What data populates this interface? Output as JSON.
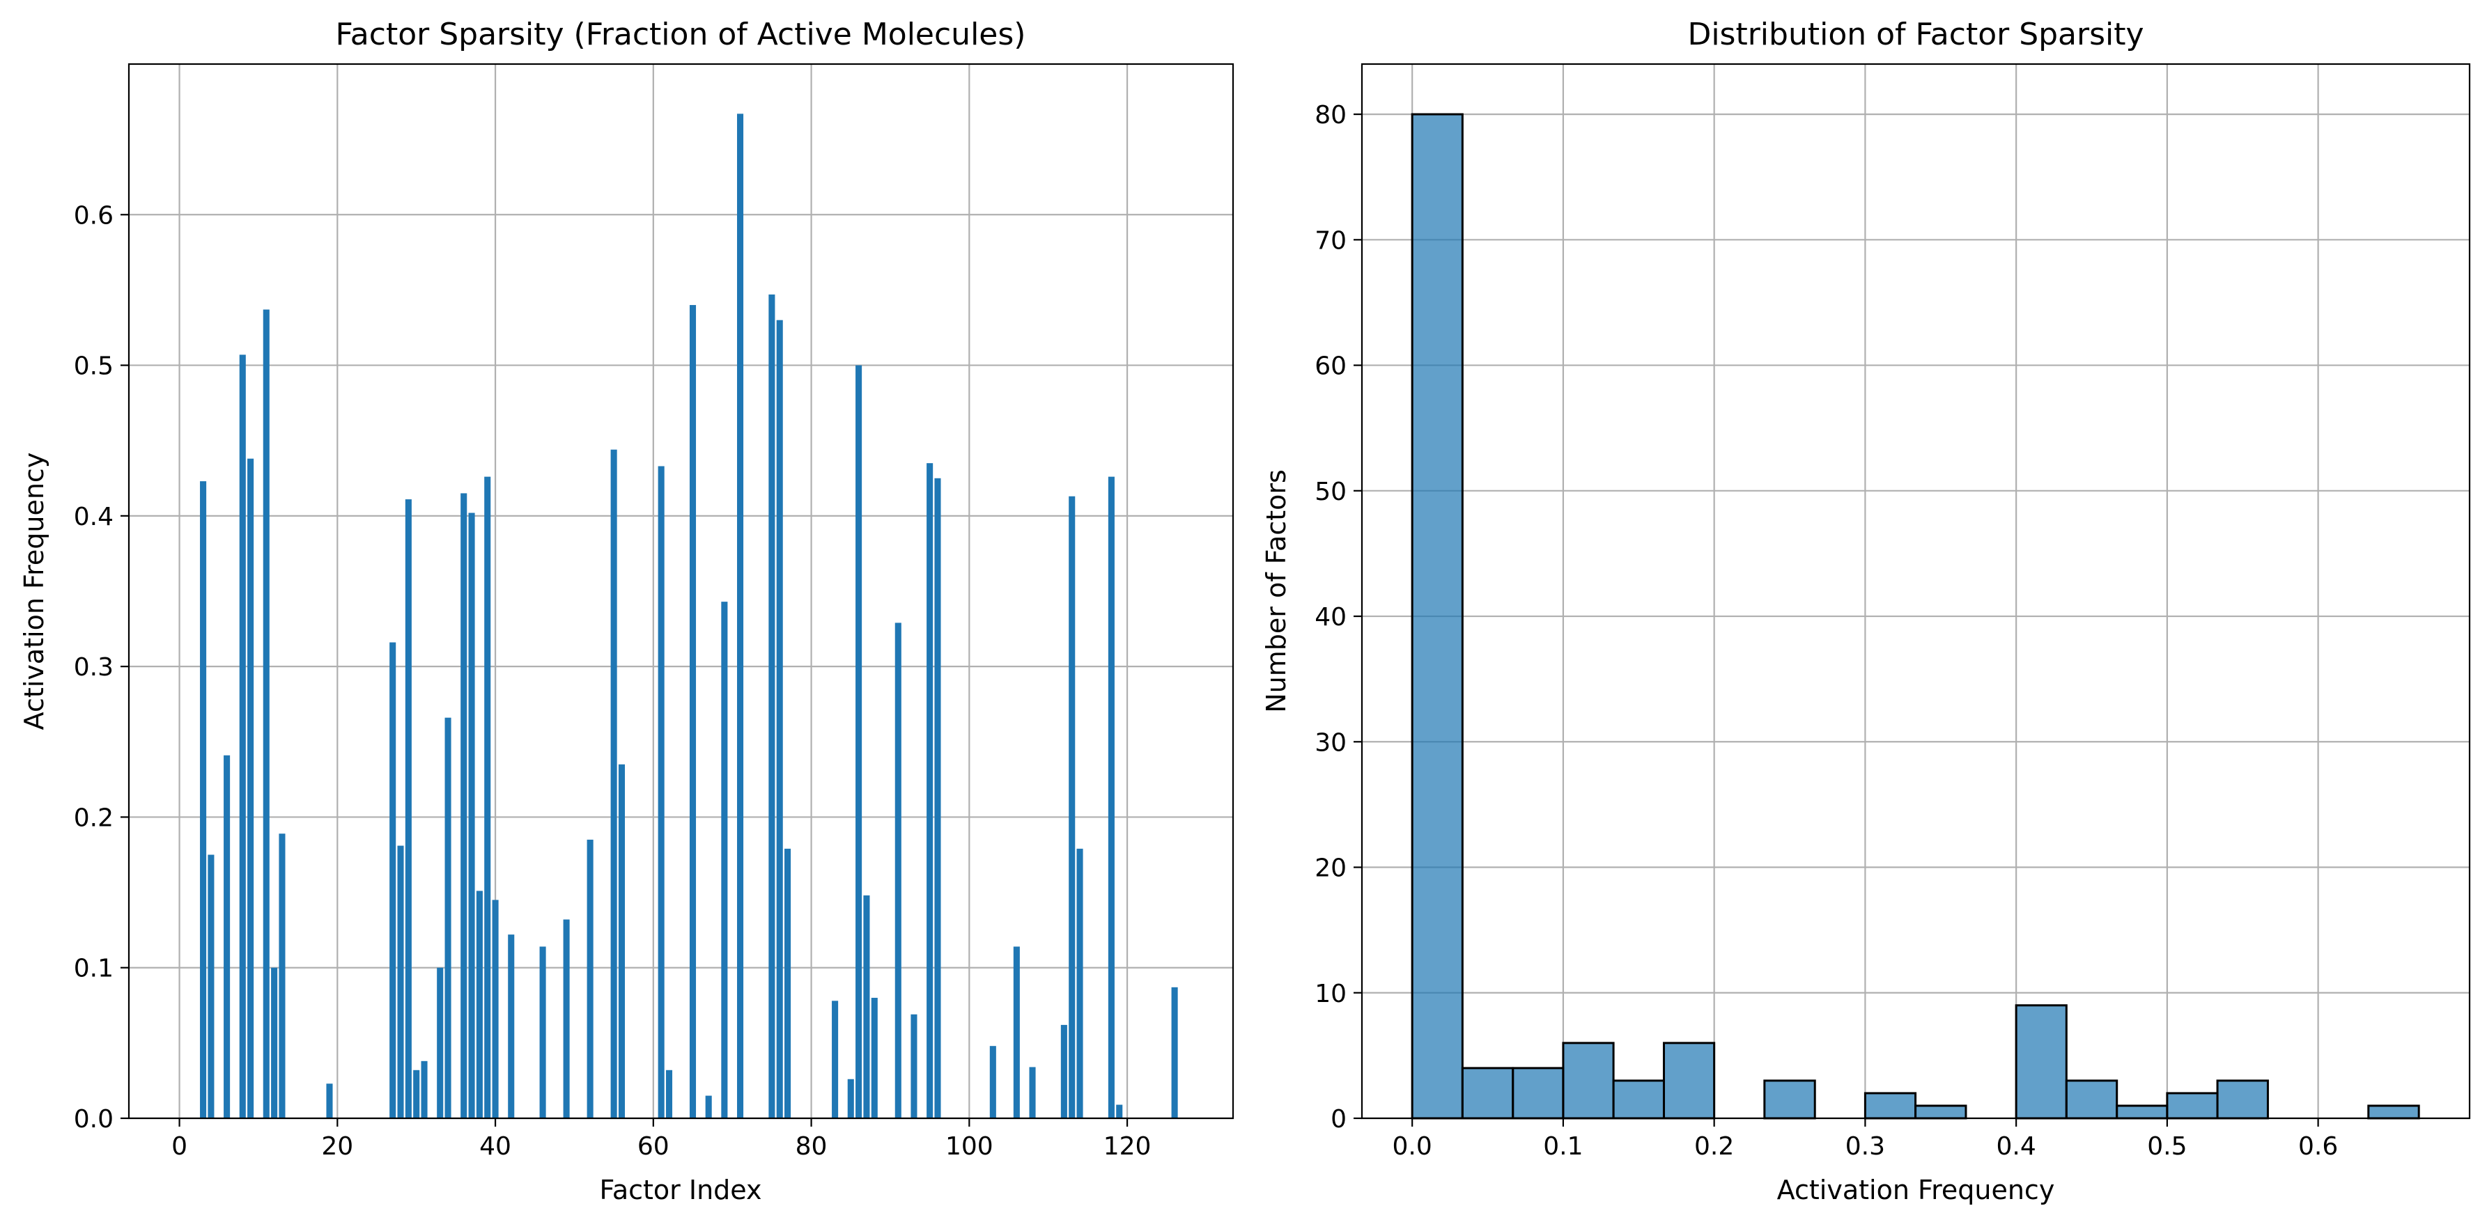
{
  "chart_data": [
    {
      "type": "bar",
      "title": "Factor Sparsity (Fraction of Active Molecules)",
      "xlabel": "Factor Index",
      "ylabel": "Activation Frequency",
      "xlim": [
        -6.4,
        133.4
      ],
      "ylim": [
        0,
        0.7
      ],
      "xticks": [
        0,
        20,
        40,
        60,
        80,
        100,
        120
      ],
      "yticks": [
        0.0,
        0.1,
        0.2,
        0.3,
        0.4,
        0.5,
        0.6
      ],
      "grid": true,
      "color": "#1f77b4",
      "x": [
        3,
        4,
        6,
        8,
        9,
        11,
        12,
        13,
        19,
        27,
        28,
        29,
        30,
        31,
        33,
        34,
        36,
        37,
        38,
        39,
        40,
        42,
        46,
        49,
        52,
        55,
        56,
        61,
        62,
        65,
        67,
        69,
        71,
        75,
        76,
        77,
        83,
        85,
        86,
        87,
        88,
        91,
        93,
        95,
        96,
        103,
        106,
        108,
        112,
        113,
        114,
        118,
        119,
        126
      ],
      "values": [
        0.423,
        0.175,
        0.241,
        0.507,
        0.438,
        0.537,
        0.1,
        0.189,
        0.023,
        0.316,
        0.181,
        0.411,
        0.032,
        0.038,
        0.1,
        0.266,
        0.415,
        0.402,
        0.151,
        0.426,
        0.145,
        0.122,
        0.114,
        0.132,
        0.185,
        0.444,
        0.235,
        0.433,
        0.032,
        0.54,
        0.015,
        0.343,
        0.667,
        0.547,
        0.53,
        0.179,
        0.078,
        0.026,
        0.5,
        0.148,
        0.08,
        0.329,
        0.069,
        0.435,
        0.425,
        0.048,
        0.114,
        0.034,
        0.062,
        0.413,
        0.179,
        0.426,
        0.009,
        0.087
      ]
    },
    {
      "type": "bar",
      "title": "Distribution of Factor Sparsity",
      "xlabel": "Activation Frequency",
      "ylabel": "Number of Factors",
      "xlim": [
        -0.0333,
        0.7003
      ],
      "ylim": [
        0,
        84
      ],
      "xticks": [
        0.0,
        0.1,
        0.2,
        0.3,
        0.4,
        0.5,
        0.6
      ],
      "yticks": [
        0,
        10,
        20,
        30,
        40,
        50,
        60,
        70,
        80
      ],
      "grid": true,
      "color": "#1f77b4",
      "bar_alpha": 0.7,
      "edge_color": "#000000",
      "bin_edges": [
        0.0,
        0.0333,
        0.0667,
        0.1,
        0.1333,
        0.1667,
        0.2,
        0.2333,
        0.2667,
        0.3,
        0.3333,
        0.3667,
        0.4,
        0.4333,
        0.4667,
        0.5,
        0.5333,
        0.5667,
        0.6,
        0.6333,
        0.6667
      ],
      "values": [
        80,
        4,
        4,
        6,
        3,
        6,
        0,
        3,
        0,
        2,
        1,
        0,
        9,
        3,
        1,
        2,
        3,
        0,
        0,
        1
      ]
    }
  ]
}
